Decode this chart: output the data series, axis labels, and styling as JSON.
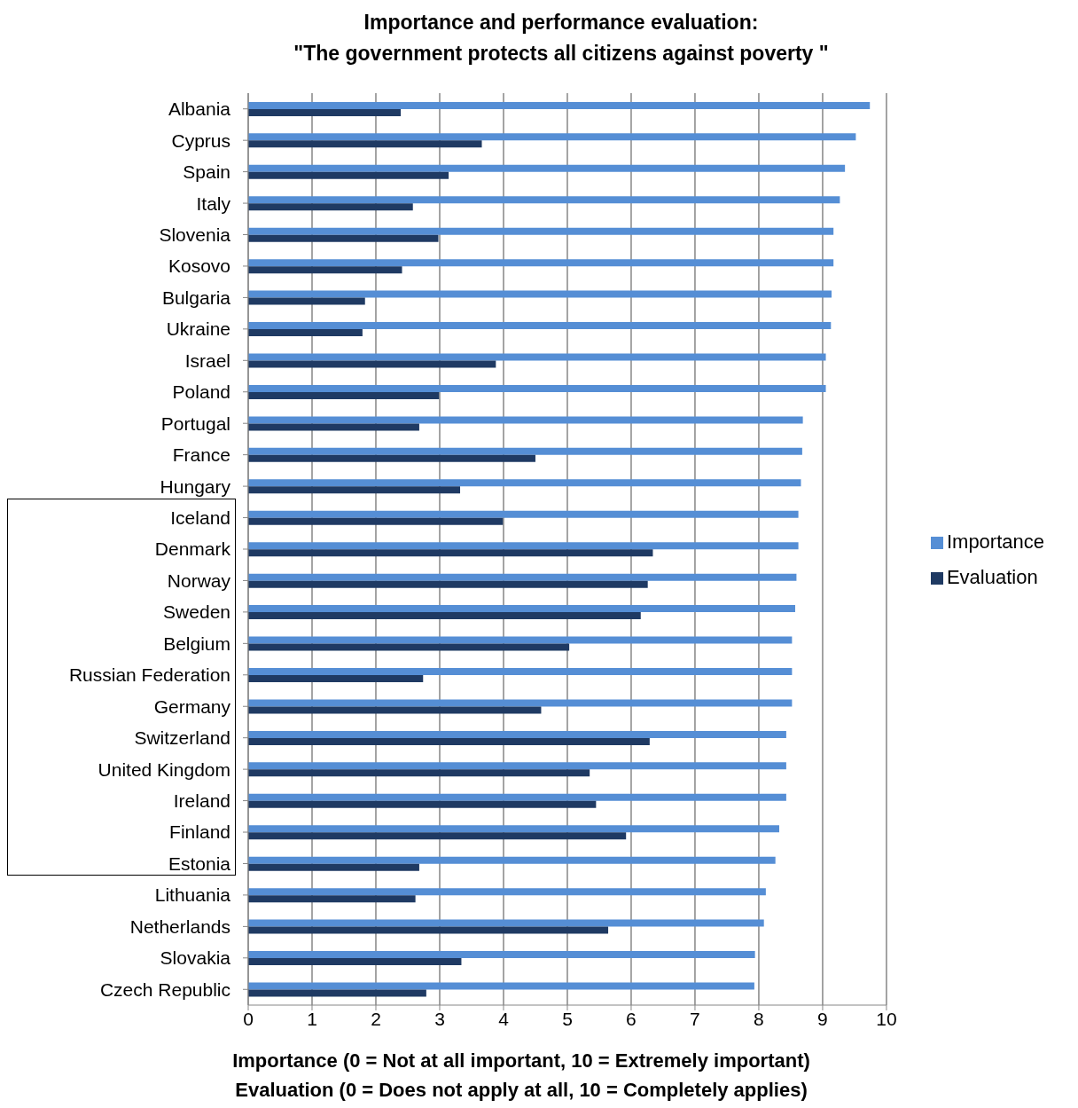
{
  "chart_data": {
    "type": "bar",
    "orientation": "horizontal",
    "title": "Importance and performance evaluation:\n\"The government protects all citizens against poverty \"",
    "xlabel": "Importance (0 = Not at all important, 10 = Extremely important)\nEvaluation (0 = Does not apply at all, 10 = Completely applies)",
    "categories": [
      "Albania",
      "Cyprus",
      "Spain",
      "Italy",
      "Slovenia",
      "Kosovo",
      "Bulgaria",
      "Ukraine",
      "Israel",
      "Poland",
      "Portugal",
      "France",
      "Hungary",
      "Iceland",
      "Denmark",
      "Norway",
      "Sweden",
      "Belgium",
      "Russian Federation",
      "Germany",
      "Switzerland",
      "United Kingdom",
      "Ireland",
      "Finland",
      "Estonia",
      "Lithuania",
      "Netherlands",
      "Slovakia",
      "Czech Republic"
    ],
    "series": [
      {
        "name": "Importance",
        "color": "#558ed5",
        "values": [
          9.74,
          9.52,
          9.35,
          9.27,
          9.17,
          9.17,
          9.14,
          9.13,
          9.05,
          9.05,
          8.69,
          8.68,
          8.66,
          8.62,
          8.62,
          8.59,
          8.57,
          8.52,
          8.52,
          8.52,
          8.43,
          8.43,
          8.43,
          8.32,
          8.26,
          8.11,
          8.08,
          7.94,
          7.93
        ]
      },
      {
        "name": "Evaluation",
        "color": "#1f3a63",
        "values": [
          2.39,
          3.66,
          3.14,
          2.58,
          2.98,
          2.41,
          1.83,
          1.79,
          3.88,
          2.99,
          2.68,
          4.5,
          3.32,
          3.99,
          6.34,
          6.26,
          6.15,
          5.03,
          2.74,
          4.59,
          6.29,
          5.35,
          5.45,
          5.92,
          2.68,
          2.62,
          5.64,
          3.34,
          2.79
        ]
      }
    ],
    "xlim": [
      0,
      10
    ],
    "xticks": [
      0,
      1,
      2,
      3,
      4,
      5,
      6,
      7,
      8,
      9,
      10
    ],
    "grid": "x",
    "legend": "right"
  }
}
